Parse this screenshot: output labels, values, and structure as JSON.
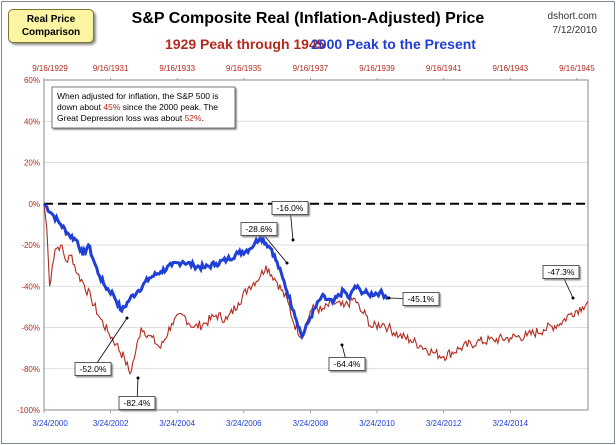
{
  "badge": {
    "line1": "Real Price",
    "line2": "Comparison"
  },
  "header": {
    "title": "S&P Composite Real (Inflation-Adjusted) Price",
    "subtitle_left": "1929 Peak through 1945",
    "subtitle_right": "2000 Peak to the Present",
    "source": "dshort.com",
    "date": "7/12/2010"
  },
  "colors": {
    "series1929": "#b32a1f",
    "series2000": "#1f3fd6",
    "zero_line": "#000000",
    "grid": "#d5d5d5"
  },
  "annotation": {
    "line1": "When adjusted for inflation, the S&P 500 is",
    "line2_pre": "down about ",
    "line2_hl": "45%",
    "line2_post": " since the 2000 peak. The",
    "line3_pre": "Great Depression loss was about  ",
    "line3_hl": "52%",
    "line3_post": "."
  },
  "chart_data": {
    "type": "line",
    "title": "S&P Composite Real (Inflation-Adjusted) Price",
    "y_unit": "percent change from peak",
    "ylim": [
      -100,
      60
    ],
    "y_ticks": [
      "60%",
      "40%",
      "20%",
      "0%",
      "-20%",
      "-40%",
      "-60%",
      "-80%",
      "-100%"
    ],
    "y_tick_values": [
      60,
      40,
      20,
      0,
      -20,
      -40,
      -60,
      -80,
      -100
    ],
    "x_months_range": [
      0,
      196
    ],
    "top_axis_labels": [
      "9/16/1929",
      "9/16/1931",
      "9/16/1933",
      "9/16/1935",
      "9/16/1937",
      "9/16/1939",
      "9/16/1941",
      "9/16/1943",
      "9/16/1945"
    ],
    "bottom_axis_labels": [
      "3/24/2000",
      "3/24/2002",
      "3/24/2004",
      "3/24/2006",
      "3/24/2008",
      "3/24/2010",
      "3/24/2012",
      "3/24/2014"
    ],
    "series": [
      {
        "name": "1929 Peak through 1945",
        "color": "#b32a1f",
        "x": [
          0,
          1,
          2,
          3,
          4,
          6,
          8,
          10,
          12,
          14,
          17,
          20,
          23,
          26,
          29,
          31,
          33,
          35,
          38,
          42,
          46,
          50,
          54,
          58,
          62,
          66,
          70,
          74,
          78,
          80,
          84,
          88,
          90,
          93,
          96,
          98,
          100,
          104,
          108,
          112,
          114,
          116,
          118,
          122,
          124,
          128,
          132,
          136,
          140,
          144,
          150,
          156,
          162,
          168,
          174,
          180,
          186,
          190,
          194,
          196
        ],
        "values": [
          0,
          -12,
          -40,
          -30,
          -22,
          -20,
          -28,
          -25,
          -34,
          -38,
          -46,
          -55,
          -62,
          -68,
          -75,
          -82.4,
          -72,
          -60,
          -64,
          -70,
          -58,
          -54,
          -60,
          -58,
          -54,
          -56,
          -48,
          -40,
          -35,
          -30,
          -38,
          -48,
          -58,
          -64.4,
          -52,
          -50,
          -52,
          -48,
          -50,
          -46,
          -52,
          -54,
          -60,
          -58,
          -60,
          -64,
          -66,
          -69,
          -72,
          -74,
          -70,
          -67,
          -66,
          -65,
          -64,
          -61,
          -58,
          -53,
          -50,
          -47.3
        ]
      },
      {
        "name": "2000 Peak to the Present",
        "color": "#1f3fd6",
        "x": [
          0,
          3,
          6,
          9,
          12,
          14,
          16,
          18,
          20,
          22,
          25,
          28,
          31,
          34,
          38,
          42,
          46,
          50,
          54,
          58,
          62,
          66,
          70,
          74,
          76,
          78,
          82,
          86,
          90,
          93,
          96,
          100,
          104,
          108,
          110,
          112,
          114,
          117,
          121,
          124
        ],
        "values": [
          0,
          -5,
          -10,
          -15,
          -18,
          -25,
          -20,
          -28,
          -35,
          -40,
          -44,
          -52,
          -46,
          -42,
          -36,
          -33,
          -30,
          -28,
          -30,
          -31,
          -29,
          -27,
          -24,
          -22,
          -19,
          -16,
          -22,
          -36,
          -52,
          -64.4,
          -55,
          -45,
          -48,
          -42,
          -46,
          -40,
          -42,
          -44,
          -43,
          -45.1
        ]
      }
    ],
    "callouts": [
      {
        "label": "-16.0%"
      },
      {
        "label": "-28.6%"
      },
      {
        "label": "-45.1%"
      },
      {
        "label": "-47.3%"
      },
      {
        "label": "-52.0%"
      },
      {
        "label": "-82.4%"
      },
      {
        "label": "-64.4%"
      }
    ]
  }
}
